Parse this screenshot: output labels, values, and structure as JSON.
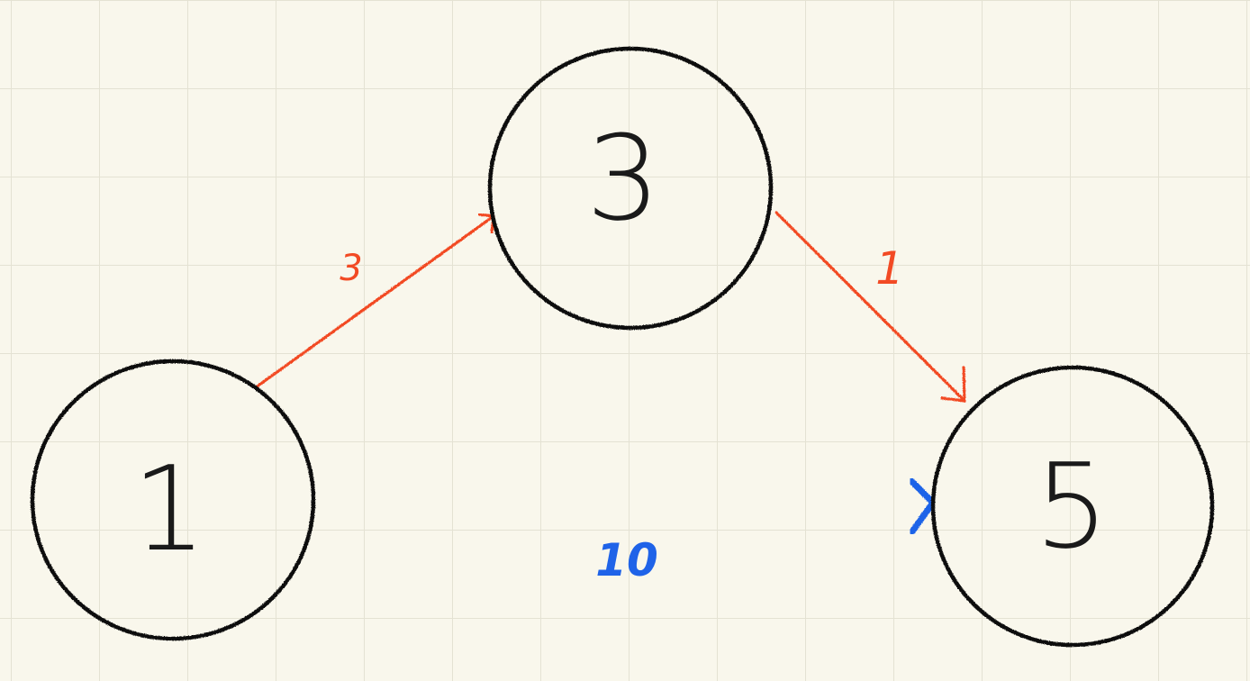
{
  "diagram": {
    "colors": {
      "background": "#f9f7ec",
      "grid": "#e4e2d3",
      "node_stroke": "#111111",
      "secondary_edge": "#f24a24",
      "primary_edge": "#1f63e8"
    },
    "nodes": [
      {
        "id": "n1",
        "label": "1"
      },
      {
        "id": "n3",
        "label": "3"
      },
      {
        "id": "n5",
        "label": "5"
      }
    ],
    "edges": [
      {
        "id": "e13",
        "from": "1",
        "to": "3",
        "weight": "3",
        "color": "#f24a24"
      },
      {
        "id": "e35",
        "from": "3",
        "to": "5",
        "weight": "1",
        "color": "#f24a24"
      },
      {
        "id": "e15",
        "from": "1",
        "to": "5",
        "weight": "10",
        "color": "#1f63e8"
      }
    ]
  }
}
